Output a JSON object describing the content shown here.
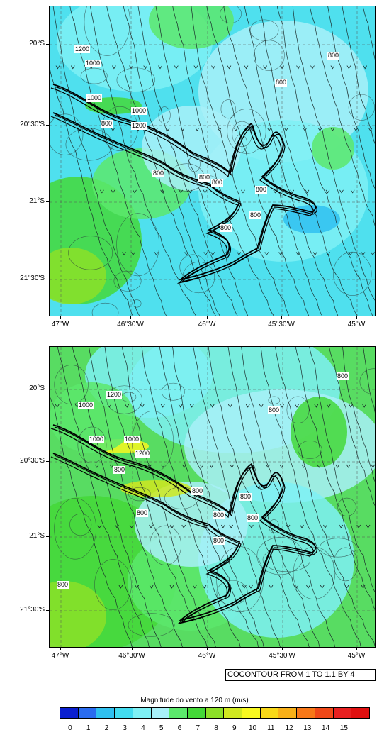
{
  "map": {
    "lat_labels": [
      "20°S",
      "20°30'S",
      "21°S",
      "21°30'S"
    ],
    "lon_labels": [
      "47°W",
      "46°30'W",
      "46°W",
      "45°30'W",
      "45°W"
    ],
    "panels": [
      {
        "contour_labels": [
          "1200",
          "1000",
          "1000",
          "1000",
          "1200",
          "800",
          "800",
          "800",
          "800",
          "800",
          "800",
          "800",
          "800",
          "800"
        ]
      },
      {
        "contour_labels": [
          "1200",
          "1000",
          "1000",
          "1000",
          "1200",
          "800",
          "800",
          "800",
          "800",
          "800",
          "800",
          "800",
          "800",
          "800",
          "800"
        ]
      }
    ]
  },
  "contour_info": "CONTOUR FROM 1 TO 1.1 BY 4",
  "contour_info_prefix": "CO",
  "colorbar": {
    "title": "Magnitude do vento a 120 m  (m/s)",
    "labels": [
      "0",
      "1",
      "2",
      "3",
      "4",
      "5",
      "6",
      "7",
      "8",
      "9",
      "10",
      "11",
      "12",
      "13",
      "14",
      "15"
    ],
    "colors": [
      "#0a1fd0",
      "#2a6cf0",
      "#2fc0f0",
      "#42dcf0",
      "#7ef0f4",
      "#a8f0f8",
      "#5ce86c",
      "#44d838",
      "#8ce028",
      "#d0e820",
      "#f8f820",
      "#f8d818",
      "#f8b018",
      "#f87818",
      "#f04818",
      "#e82020",
      "#e01010"
    ]
  }
}
